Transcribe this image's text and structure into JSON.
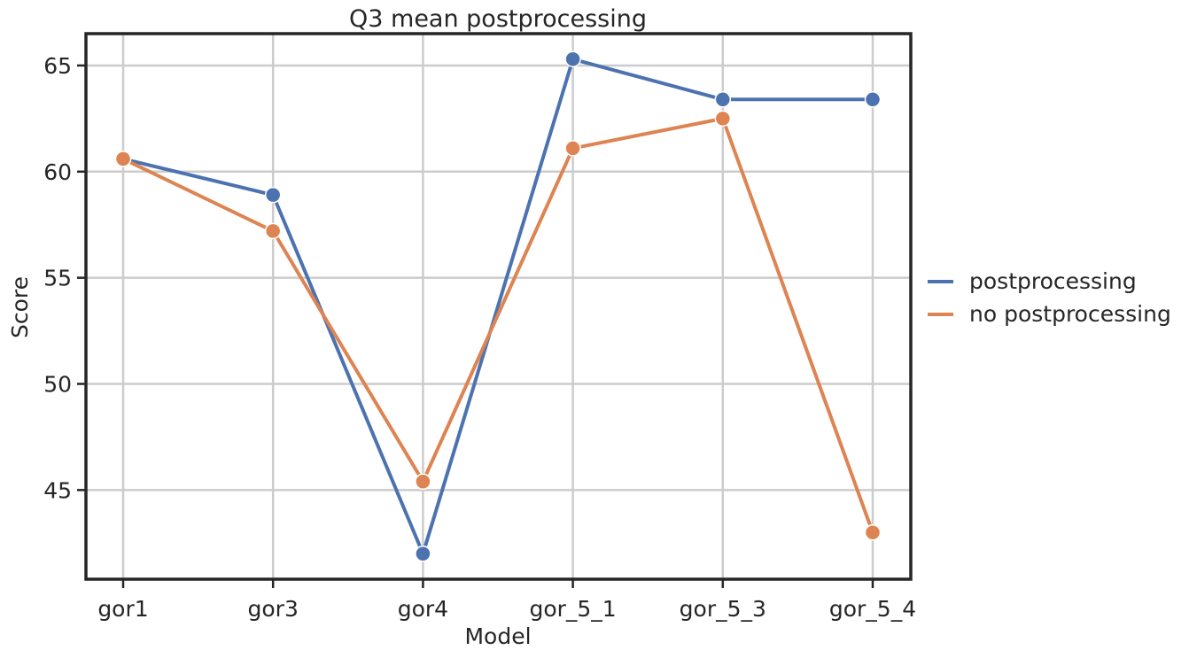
{
  "chart_data": {
    "type": "line",
    "title": "Q3 mean postprocessing",
    "xlabel": "Model",
    "ylabel": "Score",
    "categories": [
      "gor1",
      "gor3",
      "gor4",
      "gor_5_1",
      "gor_5_3",
      "gor_5_4"
    ],
    "ylim": [
      40.8,
      66.5
    ],
    "yticks": [
      45,
      50,
      55,
      60,
      65
    ],
    "grid": true,
    "legend_position": "right",
    "series": [
      {
        "name": "postprocessing",
        "color": "#4c72b0",
        "values": [
          60.6,
          58.9,
          42.0,
          65.3,
          63.4,
          63.4
        ]
      },
      {
        "name": "no postprocessing",
        "color": "#dd8452",
        "values": [
          60.6,
          57.2,
          45.4,
          61.1,
          62.5,
          43.0
        ]
      }
    ]
  }
}
